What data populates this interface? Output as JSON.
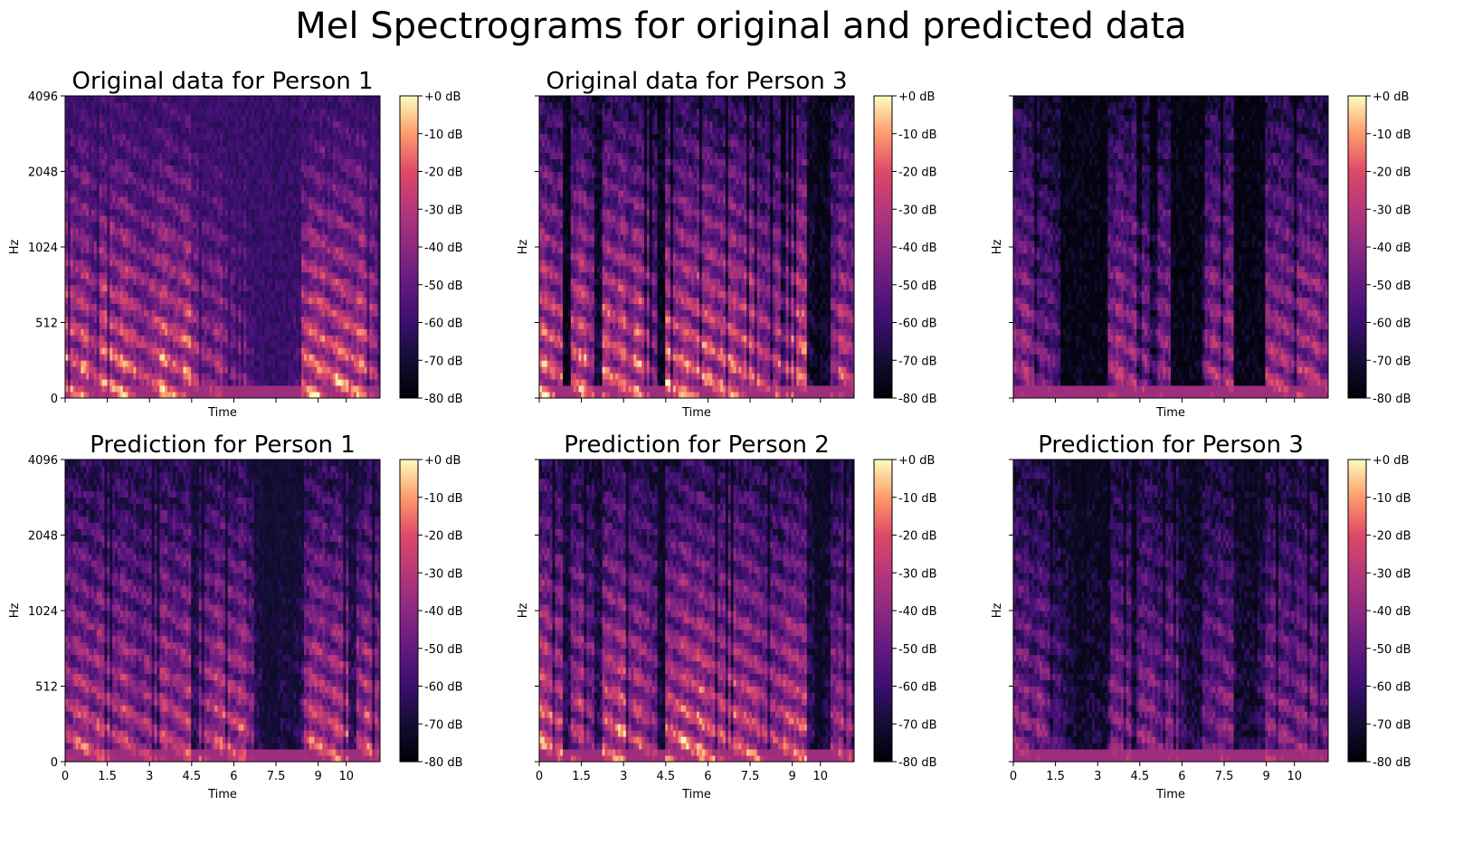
{
  "chart_data": {
    "type": "heatmap",
    "title": "Mel Spectrograms for original and predicted data",
    "colorbar": {
      "colormap": "magma",
      "range": [
        -80,
        0
      ],
      "ticks": [
        "+0 dB",
        "-10 dB",
        "-20 dB",
        "-30 dB",
        "-40 dB",
        "-50 dB",
        "-60 dB",
        "-70 dB",
        "-80 dB"
      ]
    },
    "y_axis": {
      "label": "Hz",
      "scale": "mel",
      "range": [
        0,
        4096
      ],
      "ticks": [
        "4096",
        "2048",
        "1024",
        "512",
        "0"
      ]
    },
    "x_axis": {
      "label": "Time",
      "unit": "s",
      "range": [
        0,
        11.2
      ],
      "ticks": [
        "0",
        "1.5",
        "3",
        "4.5",
        "6",
        "7.5",
        "9",
        "10"
      ]
    },
    "panels": [
      {
        "id": "p1",
        "title": "Original data for Person 1",
        "show_ytick_labels": true,
        "show_xtick_labels": false,
        "activity": [
          0.9,
          0.8,
          0.9,
          0.7,
          0.9,
          0.9,
          0.8,
          0.9,
          0.8,
          0.7,
          0.7,
          0.8,
          0.9,
          0.8,
          0.8,
          0.9,
          0.7,
          0.6,
          0.6,
          0.7,
          0.55,
          0.5,
          0.55,
          0.35,
          0.25,
          0.2,
          0.2,
          0.2,
          0.25,
          0.3,
          0.8,
          0.9,
          0.9,
          0.8,
          0.9,
          0.85,
          0.8,
          0.9,
          0.8,
          0.7
        ],
        "floor": 0.3
      },
      {
        "id": "p2",
        "title": "Original data for Person 3",
        "show_ytick_labels": false,
        "show_xtick_labels": false,
        "activity": [
          0.9,
          0.85,
          0.8,
          0.1,
          0.8,
          0.9,
          0.7,
          0.2,
          0.9,
          0.8,
          0.9,
          0.7,
          0.9,
          0.8,
          0.6,
          0.1,
          0.9,
          0.8,
          0.9,
          0.8,
          0.9,
          0.9,
          0.8,
          0.85,
          0.9,
          0.8,
          0.9,
          0.8,
          0.7,
          0.7,
          0.8,
          0.8,
          0.9,
          0.9,
          0.2,
          0.1,
          0.1,
          0.6,
          0.8,
          0.7
        ],
        "floor": 0.05
      },
      {
        "id": "p3",
        "title": "",
        "show_ytick_labels": false,
        "show_xtick_labels": false,
        "activity": [
          0.6,
          0.7,
          0.6,
          0.5,
          0.5,
          0.4,
          0.05,
          0.05,
          0.05,
          0.05,
          0.05,
          0.05,
          0.6,
          0.7,
          0.6,
          0.7,
          0.6,
          0.5,
          0.6,
          0.6,
          0.05,
          0.05,
          0.05,
          0.05,
          0.6,
          0.7,
          0.6,
          0.7,
          0.05,
          0.05,
          0.05,
          0.05,
          0.7,
          0.7,
          0.7,
          0.6,
          0.7,
          0.7,
          0.7,
          0.6
        ],
        "floor": 0.04
      },
      {
        "id": "p4",
        "title": "Prediction for Person 1",
        "show_ytick_labels": true,
        "show_xtick_labels": true,
        "activity": [
          0.7,
          0.8,
          0.8,
          0.7,
          0.8,
          0.8,
          0.7,
          0.8,
          0.7,
          0.6,
          0.7,
          0.7,
          0.8,
          0.7,
          0.7,
          0.8,
          0.3,
          0.7,
          0.7,
          0.8,
          0.8,
          0.7,
          0.8,
          0.6,
          0.25,
          0.1,
          0.15,
          0.2,
          0.15,
          0.2,
          0.7,
          0.8,
          0.8,
          0.7,
          0.8,
          0.8,
          0.3,
          0.7,
          0.8,
          0.7
        ],
        "floor": 0.15
      },
      {
        "id": "p5",
        "title": "Prediction for Person 2",
        "show_ytick_labels": false,
        "show_xtick_labels": true,
        "activity": [
          0.9,
          0.85,
          0.8,
          0.3,
          0.7,
          0.8,
          0.6,
          0.3,
          0.8,
          0.8,
          0.9,
          0.7,
          0.8,
          0.7,
          0.6,
          0.2,
          0.8,
          0.8,
          0.9,
          0.8,
          0.9,
          0.8,
          0.8,
          0.8,
          0.9,
          0.8,
          0.8,
          0.8,
          0.7,
          0.7,
          0.7,
          0.8,
          0.8,
          0.8,
          0.3,
          0.1,
          0.2,
          0.6,
          0.7,
          0.7
        ],
        "floor": 0.1
      },
      {
        "id": "p6",
        "title": "Prediction for Person 3",
        "show_ytick_labels": false,
        "show_xtick_labels": true,
        "activity": [
          0.6,
          0.6,
          0.5,
          0.6,
          0.5,
          0.4,
          0.3,
          0.2,
          0.1,
          0.2,
          0.2,
          0.15,
          0.6,
          0.6,
          0.6,
          0.5,
          0.6,
          0.6,
          0.5,
          0.6,
          0.6,
          0.3,
          0.2,
          0.2,
          0.5,
          0.5,
          0.6,
          0.6,
          0.2,
          0.2,
          0.15,
          0.3,
          0.6,
          0.6,
          0.6,
          0.5,
          0.6,
          0.6,
          0.6,
          0.5
        ],
        "floor": 0.08
      }
    ]
  }
}
